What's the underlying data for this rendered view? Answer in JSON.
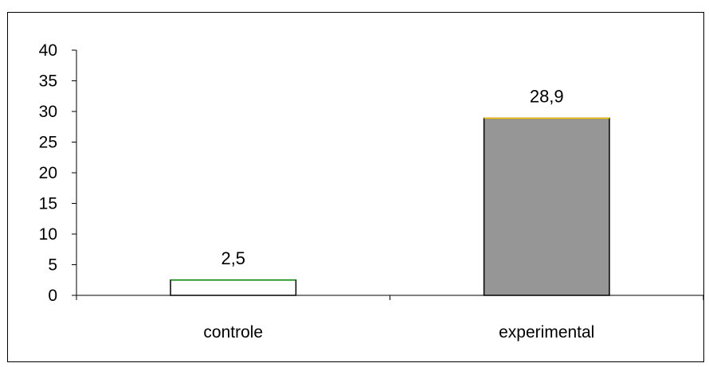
{
  "chart_data": {
    "type": "bar",
    "categories": [
      "controle",
      "experimental"
    ],
    "values": [
      2.5,
      28.9
    ],
    "data_labels": [
      "2,5",
      "28,9"
    ],
    "title": "",
    "xlabel": "",
    "ylabel": "",
    "ylim": [
      0,
      40
    ],
    "yticks": [
      "0",
      "5",
      "10",
      "15",
      "20",
      "25",
      "30",
      "35",
      "40"
    ],
    "grid": false,
    "legend": "none",
    "colors": {
      "bars": [
        "#ffffff",
        "#969696"
      ],
      "bar_top_edges": [
        "#008000",
        "#ffcc00"
      ],
      "stroke": "#000000"
    }
  }
}
